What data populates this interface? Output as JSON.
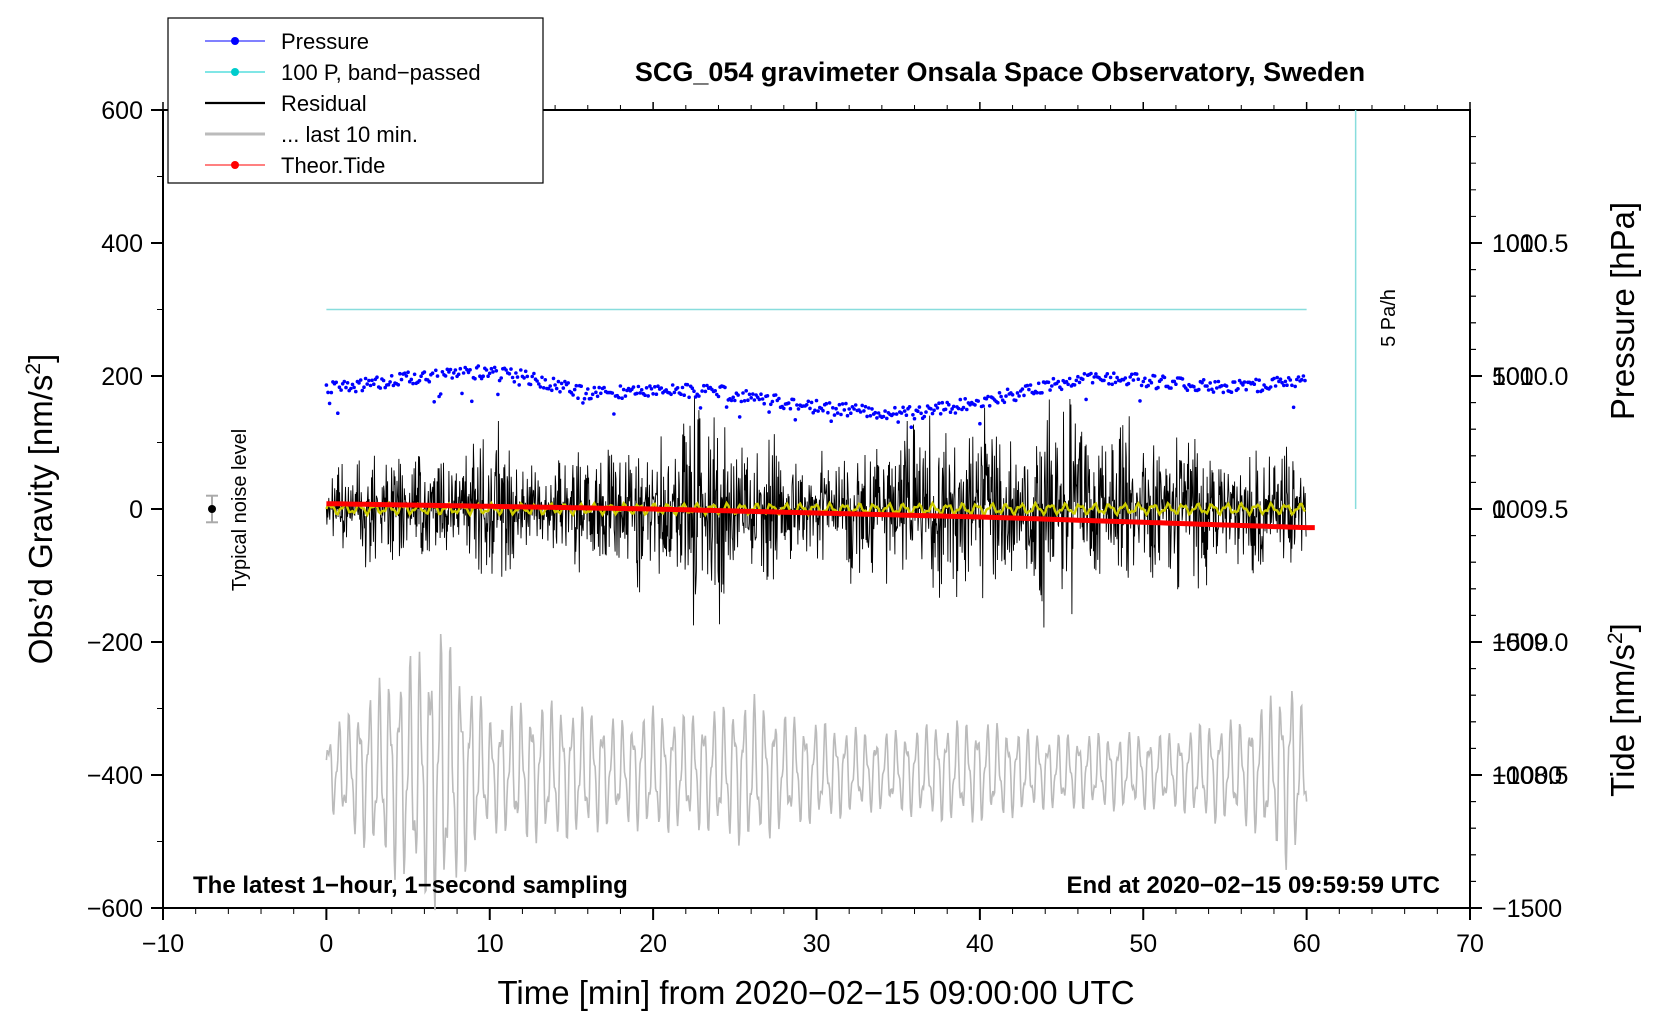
{
  "chart_data": {
    "type": "line",
    "title": "SCG_054 gravimeter Onsala Space Observatory, Sweden",
    "xlabel": "Time [min] from 2020−02−15 09:00:00 UTC",
    "ylabel": "Obs’d Gravity [nm/s",
    "ylabel_sup": "2",
    "ylabel_close": "]",
    "ylabel_right_top": "Pressure [hPa]",
    "ylabel_right_bottom": "Tide [nm/s",
    "ylabel_right_bottom_sup": "2",
    "ylabel_right_bottom_close": "]",
    "xlim": [
      -10,
      70
    ],
    "ylim": [
      -600,
      600
    ],
    "x_ticks": [
      -10,
      0,
      10,
      20,
      30,
      40,
      50,
      60,
      70
    ],
    "x_tick_labels": [
      "−10",
      "0",
      "10",
      "20",
      "30",
      "40",
      "50",
      "60",
      "70"
    ],
    "y_ticks": [
      600,
      400,
      200,
      0,
      -200,
      -400,
      -600
    ],
    "y_tick_labels": [
      "600",
      "400",
      "200",
      "0",
      "−200",
      "−400",
      "−600"
    ],
    "pressure_axis": {
      "range": [
        1008.0,
        1011.0
      ],
      "ticks": [
        1010.5,
        1010.0,
        1009.5,
        1009.0,
        1008.5
      ],
      "tick_labels": [
        "1010.5",
        "1010.0",
        "1009.5",
        "1009.0",
        "1008.5"
      ]
    },
    "tide_axis": {
      "range": [
        -1500,
        1500
      ],
      "ticks": [
        1000,
        500,
        0,
        -500,
        -1000,
        -1500
      ],
      "tick_labels": [
        "1000",
        "500",
        "0",
        "−500",
        "−1000",
        "−1500"
      ]
    },
    "legend": [
      {
        "label": "Pressure",
        "color": "#0000ff",
        "marker": "dot"
      },
      {
        "label": "100 P, band−passed",
        "color": "#00cccc",
        "marker": "dot"
      },
      {
        "label": "Residual",
        "color": "#000000",
        "marker": "line"
      },
      {
        "label": "... last 10 min.",
        "color": "#bbbbbb",
        "marker": "line"
      },
      {
        "label": "Theor.Tide",
        "color": "#ff0000",
        "marker": "dot"
      }
    ],
    "annotations": {
      "noise": "Typical noise level",
      "scale_bar": "5 Pa/h",
      "bottom_left": "The latest 1−hour, 1−second sampling",
      "bottom_right": "End at 2020−02−15 09:59:59 UTC"
    },
    "noise_level": {
      "x": -7,
      "y": 0,
      "error": 20
    },
    "series": [
      {
        "name": "Pressure",
        "color": "#0000ff",
        "axis": "pressure",
        "x": [
          0,
          4,
          8,
          12,
          16,
          20,
          24,
          28,
          32,
          36,
          40,
          44,
          47,
          52,
          56,
          60
        ],
        "values": [
          1009.95,
          1009.98,
          1010.02,
          1010.0,
          1009.93,
          1009.95,
          1009.94,
          1009.9,
          1009.87,
          1009.86,
          1009.9,
          1009.96,
          1010.0,
          1009.97,
          1009.96,
          1009.98
        ]
      },
      {
        "name": "100 P, band−passed",
        "color": "#88dddd",
        "axis": "gravity",
        "x": [
          0,
          60
        ],
        "values": [
          300,
          300
        ]
      },
      {
        "name": "Residual",
        "color": "#000000",
        "axis": "gravity",
        "x_range": [
          0,
          60
        ],
        "envelope": [
          [
            0,
            60
          ],
          [
            2,
            110
          ],
          [
            4,
            150
          ],
          [
            6,
            90
          ],
          [
            8,
            120
          ],
          [
            10,
            150
          ],
          [
            12,
            130
          ],
          [
            14,
            80
          ],
          [
            16,
            150
          ],
          [
            18,
            140
          ],
          [
            20,
            160
          ],
          [
            22,
            200
          ],
          [
            24,
            210
          ],
          [
            26,
            160
          ],
          [
            28,
            100
          ],
          [
            30,
            120
          ],
          [
            32,
            130
          ],
          [
            34,
            180
          ],
          [
            36,
            150
          ],
          [
            38,
            230
          ],
          [
            40,
            170
          ],
          [
            42,
            170
          ],
          [
            44,
            200
          ],
          [
            46,
            220
          ],
          [
            48,
            170
          ],
          [
            50,
            150
          ],
          [
            51,
            240
          ],
          [
            52,
            180
          ],
          [
            54,
            140
          ],
          [
            56,
            130
          ],
          [
            58,
            120
          ],
          [
            60,
            140
          ]
        ]
      },
      {
        "name": "Residual (low−passed)",
        "color": "#cccc00",
        "axis": "gravity",
        "x_range": [
          0,
          60
        ],
        "amplitude": 6
      },
      {
        "name": "... last 10 min.",
        "color": "#bbbbbb",
        "axis": "gravity",
        "x_range": [
          0,
          60
        ],
        "baseline": -395,
        "envelope": [
          [
            0,
            60
          ],
          [
            2,
            110
          ],
          [
            4,
            160
          ],
          [
            6,
            200
          ],
          [
            7,
            230
          ],
          [
            8,
            180
          ],
          [
            10,
            90
          ],
          [
            12,
            110
          ],
          [
            14,
            110
          ],
          [
            16,
            100
          ],
          [
            18,
            80
          ],
          [
            20,
            100
          ],
          [
            22,
            90
          ],
          [
            24,
            100
          ],
          [
            26,
            120
          ],
          [
            28,
            90
          ],
          [
            30,
            80
          ],
          [
            32,
            70
          ],
          [
            34,
            60
          ],
          [
            36,
            70
          ],
          [
            38,
            80
          ],
          [
            40,
            80
          ],
          [
            42,
            70
          ],
          [
            44,
            60
          ],
          [
            46,
            60
          ],
          [
            48,
            60
          ],
          [
            50,
            60
          ],
          [
            52,
            60
          ],
          [
            54,
            80
          ],
          [
            56,
            80
          ],
          [
            58,
            120
          ],
          [
            59,
            160
          ],
          [
            60,
            80
          ]
        ]
      },
      {
        "name": "Theor.Tide",
        "color": "#ff0000",
        "axis": "tide",
        "x": [
          0,
          10,
          20,
          30,
          40,
          50,
          60
        ],
        "values": [
          20,
          10,
          0,
          -15,
          -30,
          -50,
          -70
        ]
      }
    ]
  }
}
